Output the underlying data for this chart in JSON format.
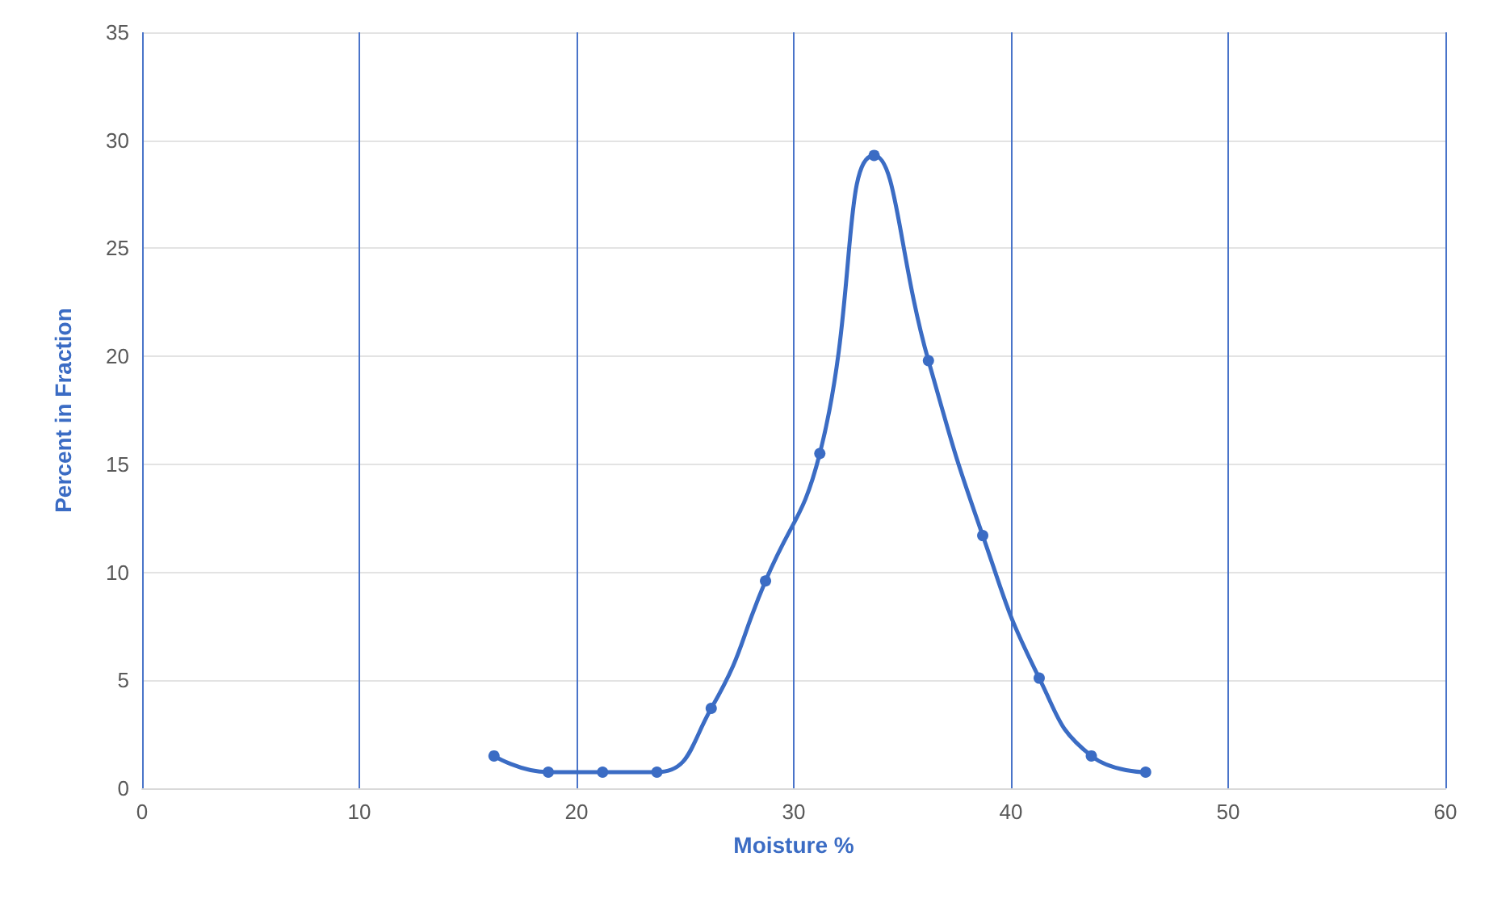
{
  "chart_data": {
    "type": "line",
    "xlabel": "Moisture %",
    "ylabel": "Percent in Fraction",
    "x": [
      16.2,
      18.7,
      21.2,
      23.7,
      26.2,
      28.7,
      31.2,
      33.7,
      36.2,
      38.7,
      41.3,
      43.7,
      46.2
    ],
    "series": [
      {
        "color": "#3b6cc4",
        "values": [
          1.5,
          0.75,
          0.75,
          0.75,
          3.7,
          9.6,
          15.5,
          29.3,
          19.8,
          11.7,
          5.1,
          1.5,
          0.75
        ]
      }
    ],
    "xlim": [
      0,
      60
    ],
    "xticks": [
      0,
      10,
      20,
      30,
      40,
      50,
      60
    ],
    "ylim": [
      0,
      35
    ],
    "yticks": [
      0,
      5,
      10,
      15,
      20,
      25,
      30,
      35
    ],
    "grid": true,
    "marker": "circle",
    "line_style": "solid"
  }
}
